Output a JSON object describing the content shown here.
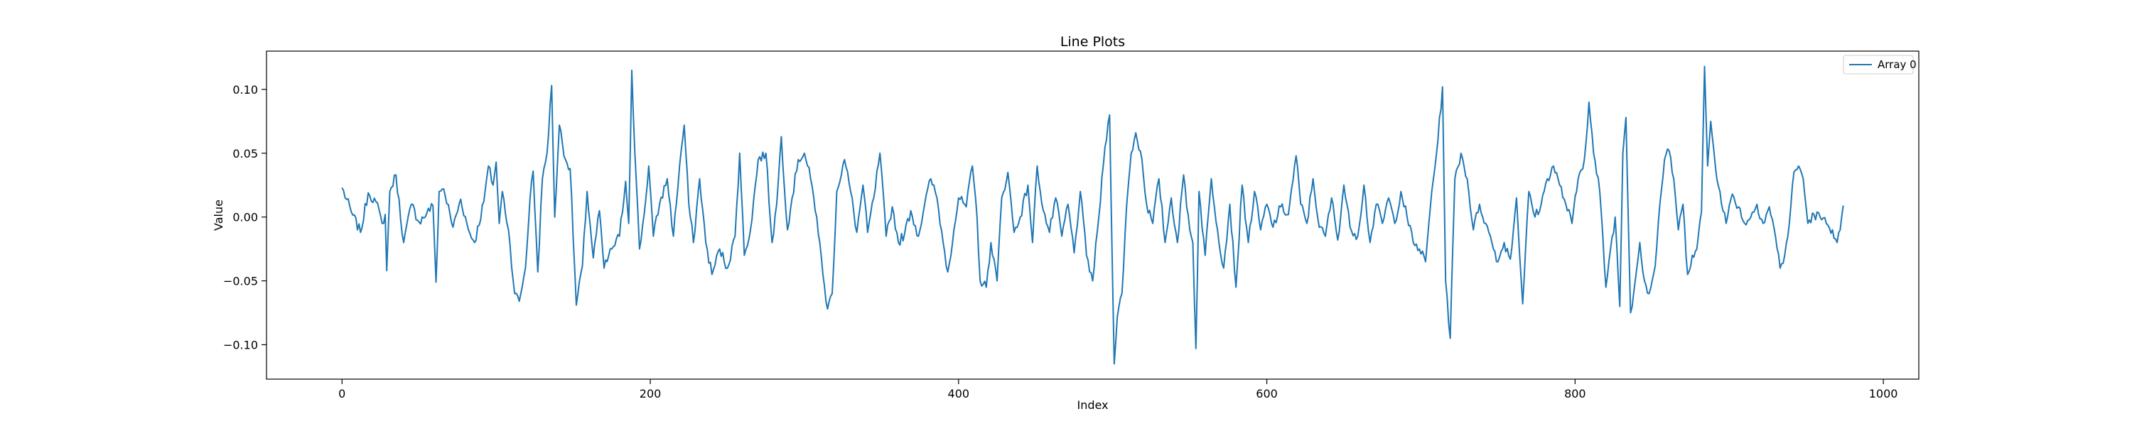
{
  "colors": {
    "series": "#1f77b4",
    "axes": "#000000",
    "background": "#ffffff",
    "legend_border": "#cccccc"
  },
  "chart_data": {
    "type": "line",
    "title": "Line Plots",
    "xlabel": "Index",
    "ylabel": "Value",
    "xlim": [
      -49,
      1023
    ],
    "ylim": [
      -0.127,
      0.13
    ],
    "xticks": [
      0,
      200,
      400,
      600,
      800,
      1000
    ],
    "xtick_labels": [
      "0",
      "200",
      "400",
      "600",
      "800",
      "1000"
    ],
    "yticks": [
      -0.1,
      -0.05,
      0.0,
      0.05,
      0.1
    ],
    "ytick_labels": [
      "−0.10",
      "−0.05",
      "0.00",
      "0.05",
      "0.10"
    ],
    "grid": false,
    "legend_position": "top-right",
    "series": [
      {
        "name": "Array 0",
        "color": "#1f77b4",
        "n_points": 975,
        "x_start": 0,
        "x_end": 974,
        "keypoints": [
          [
            0,
            0.023
          ],
          [
            6,
            0.004
          ],
          [
            12,
            -0.012
          ],
          [
            17,
            0.019
          ],
          [
            22,
            0.012
          ],
          [
            26,
            -0.005
          ],
          [
            28,
            0.002
          ],
          [
            29,
            -0.042
          ],
          [
            31,
            0.02
          ],
          [
            35,
            0.033
          ],
          [
            40,
            -0.02
          ],
          [
            45,
            0.01
          ],
          [
            50,
            -0.004
          ],
          [
            55,
            0.003
          ],
          [
            59,
            0.009
          ],
          [
            61,
            -0.051
          ],
          [
            63,
            0.02
          ],
          [
            66,
            0.022
          ],
          [
            72,
            -0.008
          ],
          [
            77,
            0.014
          ],
          [
            82,
            -0.01
          ],
          [
            86,
            -0.02
          ],
          [
            92,
            0.012
          ],
          [
            95,
            0.04
          ],
          [
            98,
            0.025
          ],
          [
            100,
            0.043
          ],
          [
            102,
            -0.005
          ],
          [
            104,
            0.02
          ],
          [
            108,
            -0.01
          ],
          [
            112,
            -0.06
          ],
          [
            115,
            -0.066
          ],
          [
            119,
            -0.04
          ],
          [
            122,
            0.015
          ],
          [
            124,
            0.036
          ],
          [
            127,
            -0.043
          ],
          [
            130,
            0.03
          ],
          [
            133,
            0.05
          ],
          [
            136,
            0.103
          ],
          [
            138,
            0.0
          ],
          [
            141,
            0.072
          ],
          [
            145,
            0.045
          ],
          [
            148,
            0.038
          ],
          [
            152,
            -0.069
          ],
          [
            156,
            -0.038
          ],
          [
            159,
            0.02
          ],
          [
            163,
            -0.032
          ],
          [
            167,
            0.005
          ],
          [
            170,
            -0.04
          ],
          [
            175,
            -0.025
          ],
          [
            180,
            -0.015
          ],
          [
            184,
            0.028
          ],
          [
            186,
            -0.005
          ],
          [
            188,
            0.115
          ],
          [
            190,
            0.05
          ],
          [
            193,
            -0.025
          ],
          [
            196,
            0.002
          ],
          [
            199,
            0.04
          ],
          [
            202,
            -0.015
          ],
          [
            206,
            0.01
          ],
          [
            211,
            0.03
          ],
          [
            215,
            -0.015
          ],
          [
            219,
            0.04
          ],
          [
            222,
            0.072
          ],
          [
            225,
            0.01
          ],
          [
            228,
            -0.02
          ],
          [
            232,
            0.03
          ],
          [
            236,
            -0.02
          ],
          [
            240,
            -0.045
          ],
          [
            245,
            -0.025
          ],
          [
            250,
            -0.04
          ],
          [
            255,
            -0.015
          ],
          [
            258,
            0.05
          ],
          [
            261,
            -0.03
          ],
          [
            265,
            -0.01
          ],
          [
            270,
            0.045
          ],
          [
            275,
            0.05
          ],
          [
            279,
            -0.02
          ],
          [
            282,
            0.01
          ],
          [
            285,
            0.063
          ],
          [
            289,
            -0.01
          ],
          [
            292,
            0.015
          ],
          [
            296,
            0.045
          ],
          [
            300,
            0.05
          ],
          [
            304,
            0.03
          ],
          [
            308,
            0.0
          ],
          [
            312,
            -0.045
          ],
          [
            315,
            -0.072
          ],
          [
            318,
            -0.06
          ],
          [
            321,
            0.02
          ],
          [
            326,
            0.045
          ],
          [
            330,
            0.02
          ],
          [
            334,
            -0.012
          ],
          [
            338,
            0.025
          ],
          [
            341,
            -0.012
          ],
          [
            345,
            0.015
          ],
          [
            349,
            0.05
          ],
          [
            353,
            -0.015
          ],
          [
            357,
            0.008
          ],
          [
            361,
            -0.02
          ],
          [
            365,
            -0.013
          ],
          [
            369,
            0.005
          ],
          [
            374,
            -0.015
          ],
          [
            378,
            0.01
          ],
          [
            382,
            0.03
          ],
          [
            386,
            0.015
          ],
          [
            390,
            -0.02
          ],
          [
            393,
            -0.043
          ],
          [
            397,
            -0.01
          ],
          [
            400,
            0.015
          ],
          [
            405,
            0.008
          ],
          [
            409,
            0.04
          ],
          [
            412,
            0.0
          ],
          [
            414,
            -0.05
          ],
          [
            418,
            -0.055
          ],
          [
            421,
            -0.02
          ],
          [
            425,
            -0.05
          ],
          [
            428,
            0.015
          ],
          [
            432,
            0.035
          ],
          [
            436,
            -0.012
          ],
          [
            440,
            0.0
          ],
          [
            445,
            0.025
          ],
          [
            448,
            -0.02
          ],
          [
            451,
            0.04
          ],
          [
            455,
            0.005
          ],
          [
            459,
            -0.012
          ],
          [
            463,
            0.015
          ],
          [
            467,
            -0.015
          ],
          [
            471,
            0.01
          ],
          [
            475,
            -0.028
          ],
          [
            479,
            0.02
          ],
          [
            483,
            -0.03
          ],
          [
            487,
            -0.05
          ],
          [
            491,
            0.0
          ],
          [
            495,
            0.055
          ],
          [
            498,
            0.08
          ],
          [
            501,
            -0.115
          ],
          [
            503,
            -0.078
          ],
          [
            506,
            -0.06
          ],
          [
            509,
            0.008
          ],
          [
            512,
            0.05
          ],
          [
            515,
            0.066
          ],
          [
            519,
            0.045
          ],
          [
            522,
            0.01
          ],
          [
            526,
            -0.005
          ],
          [
            530,
            0.03
          ],
          [
            534,
            -0.02
          ],
          [
            538,
            0.015
          ],
          [
            542,
            -0.02
          ],
          [
            546,
            0.033
          ],
          [
            550,
            -0.01
          ],
          [
            552,
            -0.02
          ],
          [
            554,
            -0.103
          ],
          [
            556,
            0.02
          ],
          [
            560,
            -0.03
          ],
          [
            564,
            0.03
          ],
          [
            568,
            -0.01
          ],
          [
            572,
            -0.04
          ],
          [
            576,
            0.01
          ],
          [
            580,
            -0.055
          ],
          [
            584,
            0.025
          ],
          [
            588,
            -0.02
          ],
          [
            592,
            0.02
          ],
          [
            596,
            -0.01
          ],
          [
            600,
            0.01
          ],
          [
            604,
            -0.008
          ],
          [
            609,
            0.008
          ],
          [
            614,
            0.002
          ],
          [
            619,
            0.048
          ],
          [
            622,
            0.01
          ],
          [
            626,
            -0.005
          ],
          [
            630,
            0.03
          ],
          [
            634,
            -0.008
          ],
          [
            638,
            -0.015
          ],
          [
            642,
            0.015
          ],
          [
            646,
            -0.018
          ],
          [
            650,
            0.025
          ],
          [
            654,
            -0.008
          ],
          [
            659,
            -0.015
          ],
          [
            663,
            0.025
          ],
          [
            667,
            -0.02
          ],
          [
            671,
            0.01
          ],
          [
            675,
            -0.005
          ],
          [
            679,
            0.015
          ],
          [
            683,
            -0.005
          ],
          [
            687,
            0.02
          ],
          [
            691,
            0.0
          ],
          [
            695,
            -0.02
          ],
          [
            699,
            -0.025
          ],
          [
            703,
            -0.035
          ],
          [
            707,
            0.02
          ],
          [
            711,
            0.06
          ],
          [
            714,
            0.102
          ],
          [
            716,
            -0.05
          ],
          [
            719,
            -0.095
          ],
          [
            722,
            0.03
          ],
          [
            726,
            0.05
          ],
          [
            730,
            0.03
          ],
          [
            734,
            -0.01
          ],
          [
            738,
            0.01
          ],
          [
            742,
            -0.005
          ],
          [
            746,
            -0.02
          ],
          [
            750,
            -0.035
          ],
          [
            754,
            -0.02
          ],
          [
            758,
            -0.033
          ],
          [
            762,
            0.015
          ],
          [
            766,
            -0.068
          ],
          [
            770,
            0.02
          ],
          [
            774,
            0.0
          ],
          [
            778,
            0.01
          ],
          [
            782,
            0.03
          ],
          [
            786,
            0.04
          ],
          [
            790,
            0.025
          ],
          [
            794,
            0.01
          ],
          [
            798,
            -0.005
          ],
          [
            802,
            0.03
          ],
          [
            806,
            0.045
          ],
          [
            809,
            0.09
          ],
          [
            812,
            0.05
          ],
          [
            816,
            0.02
          ],
          [
            820,
            -0.055
          ],
          [
            823,
            -0.025
          ],
          [
            826,
            0.0
          ],
          [
            829,
            -0.07
          ],
          [
            831,
            0.05
          ],
          [
            833,
            0.078
          ],
          [
            836,
            -0.075
          ],
          [
            839,
            -0.05
          ],
          [
            842,
            -0.02
          ],
          [
            845,
            -0.05
          ],
          [
            848,
            -0.06
          ],
          [
            852,
            -0.038
          ],
          [
            855,
            0.01
          ],
          [
            858,
            0.045
          ],
          [
            861,
            0.052
          ],
          [
            864,
            0.03
          ],
          [
            867,
            -0.01
          ],
          [
            870,
            0.01
          ],
          [
            873,
            -0.045
          ],
          [
            876,
            -0.03
          ],
          [
            879,
            -0.025
          ],
          [
            882,
            0.004
          ],
          [
            884,
            0.118
          ],
          [
            886,
            0.04
          ],
          [
            888,
            0.075
          ],
          [
            891,
            0.04
          ],
          [
            894,
            0.02
          ],
          [
            898,
            -0.005
          ],
          [
            902,
            0.018
          ],
          [
            906,
            0.008
          ],
          [
            910,
            -0.005
          ],
          [
            914,
            0.0
          ],
          [
            918,
            0.01
          ],
          [
            922,
            -0.005
          ],
          [
            926,
            0.008
          ],
          [
            930,
            -0.015
          ],
          [
            933,
            -0.04
          ],
          [
            936,
            -0.03
          ],
          [
            939,
            -0.005
          ],
          [
            942,
            0.035
          ],
          [
            945,
            0.04
          ],
          [
            948,
            0.03
          ],
          [
            951,
            -0.005
          ],
          [
            955,
            0.002
          ],
          [
            959,
            0.0
          ],
          [
            963,
            -0.005
          ],
          [
            967,
            -0.01
          ],
          [
            970,
            -0.02
          ],
          [
            972,
            -0.01
          ],
          [
            974,
            0.009
          ]
        ]
      }
    ]
  }
}
